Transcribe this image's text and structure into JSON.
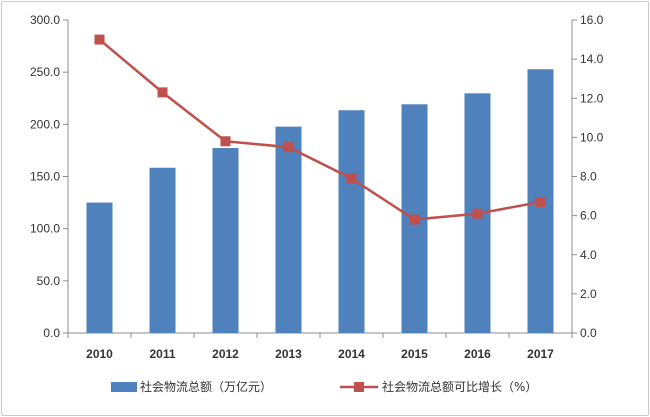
{
  "chart_data": {
    "type": "bar+line",
    "categories": [
      "2010",
      "2011",
      "2012",
      "2013",
      "2014",
      "2015",
      "2016",
      "2017"
    ],
    "series": [
      {
        "name": "社会物流总额（万亿元）",
        "type": "bar",
        "axis": "left",
        "color": "#4f81bd",
        "values": [
          125.0,
          158.4,
          177.3,
          197.8,
          213.5,
          219.2,
          229.7,
          252.8
        ]
      },
      {
        "name": "社会物流总额可比增长（%）",
        "type": "line",
        "axis": "right",
        "color": "#c0504d",
        "values": [
          15.0,
          12.3,
          9.8,
          9.5,
          7.9,
          5.8,
          6.1,
          6.7
        ]
      }
    ],
    "left_axis": {
      "min": 0,
      "max": 300,
      "step": 50,
      "tick_labels": [
        "0.0",
        "50.0",
        "100.0",
        "150.0",
        "200.0",
        "250.0",
        "300.0"
      ]
    },
    "right_axis": {
      "min": 0,
      "max": 16,
      "step": 2,
      "tick_labels": [
        "0.0",
        "2.0",
        "4.0",
        "6.0",
        "8.0",
        "10.0",
        "12.0",
        "14.0",
        "16.0"
      ]
    },
    "grid": false,
    "legend_position": "bottom"
  }
}
